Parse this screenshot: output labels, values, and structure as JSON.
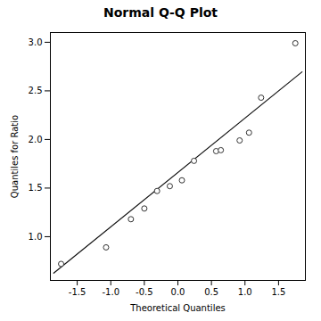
{
  "chart_data": {
    "type": "scatter",
    "title": "Normal Q-Q Plot",
    "xlabel": "Theoretical Quantiles",
    "ylabel": "Quantiles for Ratio",
    "series": [
      {
        "type": "line",
        "color": "#111111",
        "line_style": "solid",
        "x": [
          -1.85,
          1.85
        ],
        "values": [
          0.625,
          2.695
        ]
      },
      {
        "type": "scatter",
        "color": "#333333",
        "marker": "circle",
        "x": [
          -1.74,
          -1.07,
          -0.7,
          -0.5,
          -0.31,
          -0.12,
          0.06,
          0.24,
          0.57,
          0.64,
          0.92,
          1.06,
          1.24,
          1.75
        ],
        "values": [
          0.72,
          0.89,
          1.18,
          1.29,
          1.47,
          1.52,
          1.58,
          1.78,
          1.88,
          1.89,
          1.99,
          2.07,
          2.43,
          2.99
        ]
      }
    ],
    "xlim": [
      -1.9,
      1.9
    ],
    "ylim": [
      0.55,
      3.1
    ],
    "xticks": [
      -1.5,
      {
        "value": -1.0,
        "label": "-1.0"
      },
      -0.5,
      {
        "value": 0.0,
        "label": "0.0"
      },
      0.5,
      {
        "value": 1.0,
        "label": "1.0"
      },
      1.5
    ],
    "yticks": [
      {
        "value": 1.0,
        "label": "1.0"
      },
      1.5,
      {
        "value": 2.0,
        "label": "2.0"
      },
      2.5,
      {
        "value": 3.0,
        "label": "3.0"
      }
    ],
    "grid": false
  }
}
